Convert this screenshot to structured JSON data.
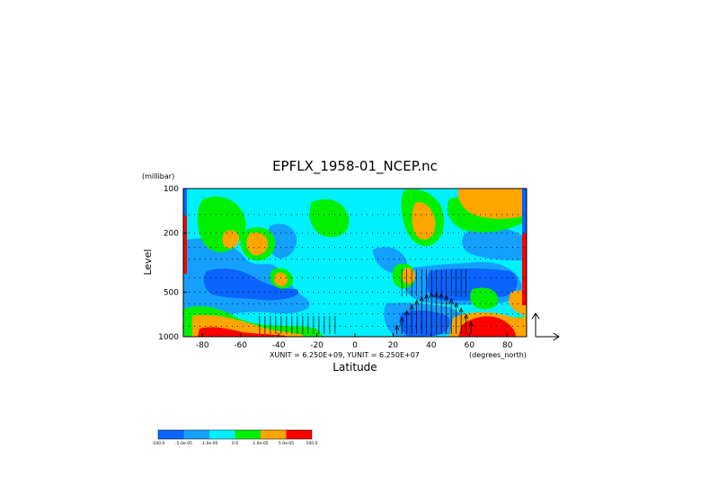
{
  "chart_data": {
    "type": "heatmap",
    "title": "EPFLX_1958-01_NCEP.nc",
    "ylabel": "Level",
    "yunits": "(millibar)",
    "xlabel": "Latitude",
    "xunits": "(degrees_north)",
    "scale_note": "XUNIT = 6.250E+09, YUNIT = 6.250E+07",
    "x_ticks": [
      -80,
      -60,
      -40,
      -20,
      0,
      20,
      40,
      60,
      80
    ],
    "x_tick_labels": [
      "-80",
      "-60",
      "-40",
      "-20",
      "0",
      "20",
      "40",
      "60",
      "80"
    ],
    "y_ticks": [
      100,
      200,
      500,
      1000
    ],
    "y_tick_labels": [
      "100",
      "200",
      "500",
      "1000"
    ],
    "y_scale": "log",
    "xlim": [
      -90,
      90
    ],
    "ylim": [
      1000,
      100
    ],
    "colorbar": {
      "labels": [
        "-100.0",
        "-5.0e-05",
        "-1.0e-05",
        "0.0",
        "1.0e-05",
        "5.0e-05",
        "100.0"
      ],
      "colors": [
        "#0a64ff",
        "#14a0ff",
        "#00f0ff",
        "#00f000",
        "#ffa500",
        "#ff0000"
      ]
    },
    "field_colors": {
      "neg_strong": "#0a64ff",
      "neg_mid": "#14a0ff",
      "neg_weak": "#00f0ff",
      "pos_weak": "#00f000",
      "pos_mid": "#ffa500",
      "pos_strong": "#ff0000"
    },
    "has_vectors": true,
    "grid": "dotted"
  }
}
